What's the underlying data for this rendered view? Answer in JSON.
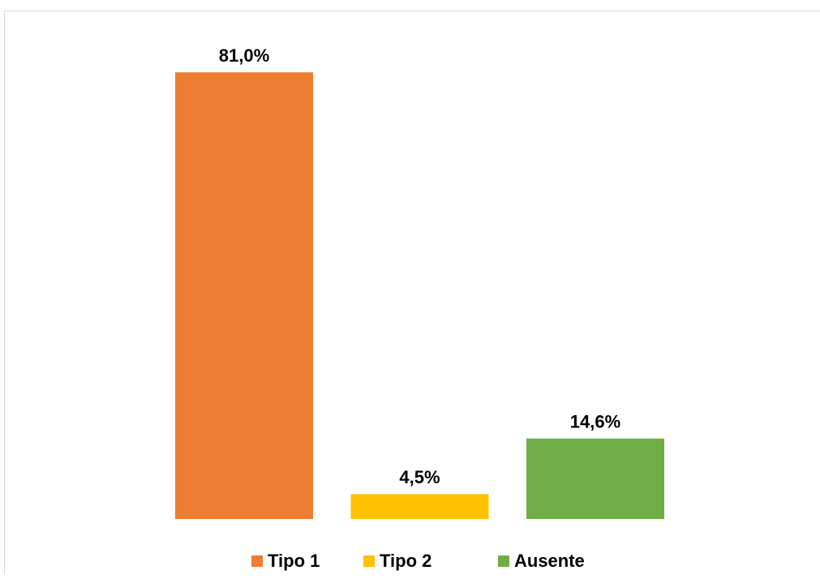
{
  "chart_data": {
    "type": "bar",
    "series": [
      {
        "name": "Tipo 1",
        "color": "#ed7d31",
        "values": [
          81.0
        ],
        "value_labels": [
          "81,0%"
        ]
      },
      {
        "name": "Tipo 2",
        "color": "#ffc000",
        "values": [
          4.5
        ],
        "value_labels": [
          "4,5%"
        ]
      },
      {
        "name": "Ausente",
        "color": "#70ad47",
        "values": [
          14.6
        ],
        "value_labels": [
          "14,6%"
        ]
      }
    ],
    "ylim": [
      0,
      90
    ],
    "legend": "bottom"
  }
}
